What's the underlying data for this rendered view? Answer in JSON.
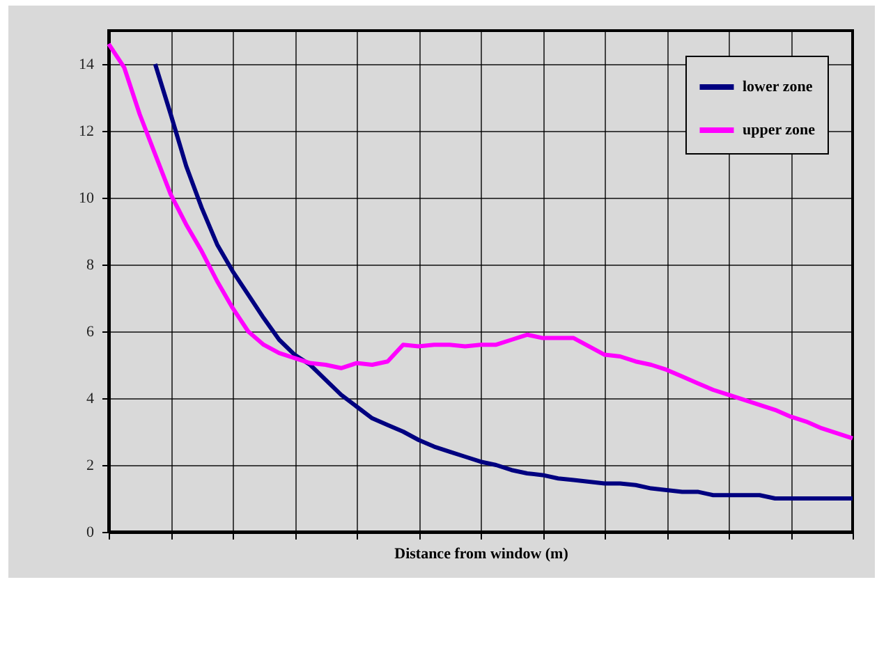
{
  "chart_data": {
    "type": "line",
    "xlabel": "Distance from window (m)",
    "categories": [
      null,
      null,
      null,
      null,
      null,
      null,
      null,
      null,
      null,
      null,
      null,
      null,
      null,
      null,
      null,
      null,
      null,
      null,
      null,
      null,
      null,
      null,
      null,
      null,
      null,
      null,
      null,
      null,
      null,
      null,
      null,
      null,
      null,
      null,
      null,
      null,
      null,
      null,
      null,
      null,
      null,
      null,
      null,
      null,
      null,
      null,
      null,
      null,
      null
    ],
    "series": [
      {
        "name": "lower zone",
        "color": "#000080",
        "values": [
          null,
          null,
          null,
          14.0,
          12.5,
          10.95,
          9.7,
          8.6,
          7.8,
          7.1,
          6.4,
          5.75,
          5.3,
          5.0,
          4.55,
          4.1,
          3.75,
          3.4,
          3.2,
          3.0,
          2.75,
          2.55,
          2.4,
          2.25,
          2.1,
          2.0,
          1.85,
          1.75,
          1.7,
          1.6,
          1.55,
          1.5,
          1.45,
          1.45,
          1.4,
          1.3,
          1.25,
          1.2,
          1.2,
          1.1,
          1.1,
          1.1,
          1.1,
          1.0,
          1.0,
          1.0,
          1.0,
          1.0,
          1.0
        ]
      },
      {
        "name": "upper zone",
        "color": "#ff00ff",
        "values": [
          14.6,
          13.9,
          12.5,
          11.3,
          10.1,
          9.2,
          8.4,
          7.5,
          6.7,
          6.0,
          5.6,
          5.35,
          5.2,
          5.05,
          5.0,
          4.9,
          5.05,
          5.0,
          5.1,
          5.6,
          5.55,
          5.6,
          5.6,
          5.55,
          5.6,
          5.6,
          5.75,
          5.9,
          5.8,
          5.8,
          5.8,
          5.55,
          5.3,
          5.25,
          5.1,
          5.0,
          4.85,
          4.65,
          4.45,
          4.25,
          4.1,
          3.95,
          3.8,
          3.65,
          3.45,
          3.3,
          3.1,
          2.95,
          2.8
        ]
      }
    ],
    "ylim": [
      0,
      15
    ],
    "yticks": [
      0,
      2,
      4,
      6,
      8,
      10,
      12,
      14
    ],
    "grid": true,
    "legend": "top right",
    "tick_labels": "y",
    "line_style": "solid",
    "marker": "none"
  }
}
